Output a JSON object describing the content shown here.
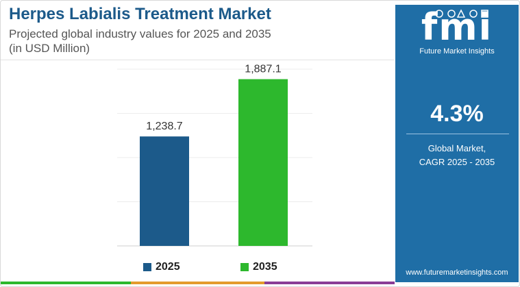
{
  "chart_data": {
    "type": "bar",
    "title": "Herpes Labialis Treatment Market",
    "subtitle_line1": "Projected global industry values for 2025 and 2035",
    "subtitle_line2": "(in USD Million)",
    "categories": [
      "2025",
      "2035"
    ],
    "values": [
      1238.7,
      1887.1
    ],
    "value_labels": [
      "1,238.7",
      "1,887.1"
    ],
    "colors": [
      "#1c5a8a",
      "#2db82d"
    ],
    "ylim": [
      0,
      2000
    ],
    "grid": true,
    "legend": "bottom"
  },
  "panel": {
    "logo": "fmi",
    "logo_subtitle": "Future Market Insights",
    "cagr_value": "4.3%",
    "cagr_label_line1": "Global Market,",
    "cagr_label_line2": "CAGR 2025 - 2035",
    "website": "www.futuremarketinsights.com",
    "background_color": "#1f6ea6"
  },
  "legend": {
    "items": [
      {
        "label": "2025",
        "color": "#1c5a8a"
      },
      {
        "label": "2035",
        "color": "#2db82d"
      }
    ]
  }
}
